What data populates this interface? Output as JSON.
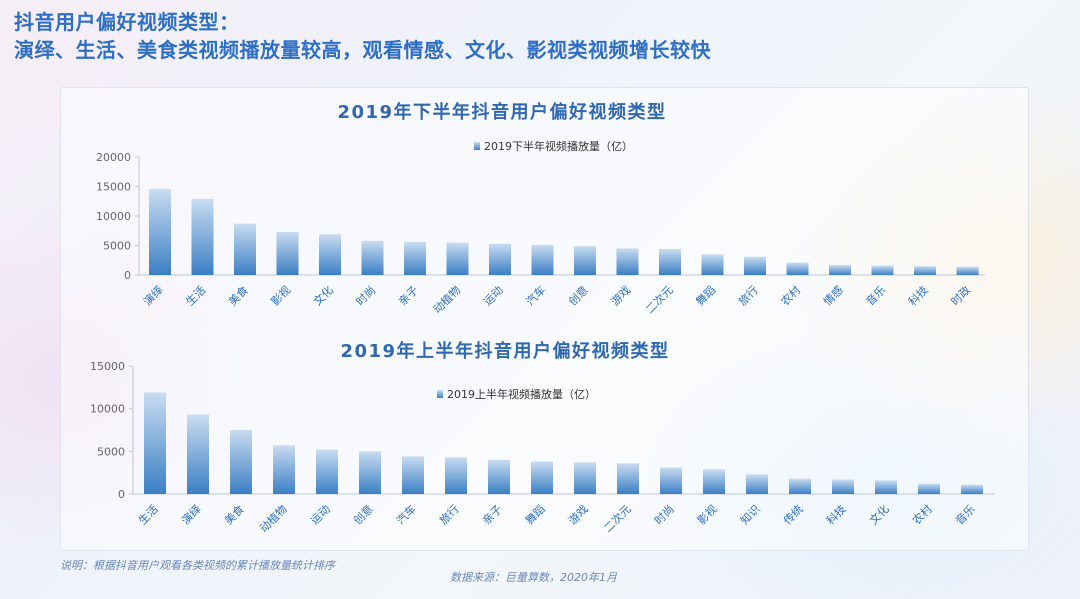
{
  "header": {
    "title_line1": "抖音用户偏好视频类型：",
    "title_line2": "演绎、生活、美食类视频播放量较高，观看情感、文化、影视类视频增长较快"
  },
  "footer": {
    "note": "说明：根据抖音用户观看各类视频的累计播放量统计排序",
    "source": "数据来源：巨量算数，2020年1月"
  },
  "colors": {
    "bar_top": "#c9dcf1",
    "bar_bottom": "#3b7fc4",
    "title": "#2f68b0",
    "category_label": "#2f6fbf"
  },
  "chart_data": [
    {
      "type": "bar",
      "title": "2019年下半年抖音用户偏好视频类型",
      "legend": "top",
      "grid": false,
      "ylim": [
        0,
        20000
      ],
      "yticks": [
        "0",
        "5000",
        "10000",
        "15000",
        "20000"
      ],
      "categories": [
        "演绎",
        "生活",
        "美食",
        "影视",
        "文化",
        "时尚",
        "亲子",
        "动植物",
        "运动",
        "汽车",
        "创意",
        "游戏",
        "二次元",
        "舞蹈",
        "旅行",
        "农村",
        "情感",
        "音乐",
        "科技",
        "时政"
      ],
      "series": [
        {
          "name": "2019下半年视频播放量（亿）",
          "values": [
            14600,
            12900,
            8700,
            7300,
            6900,
            5800,
            5600,
            5500,
            5300,
            5100,
            4900,
            4500,
            4400,
            3500,
            3100,
            2100,
            1700,
            1600,
            1500,
            1400
          ]
        }
      ]
    },
    {
      "type": "bar",
      "title": "2019年上半年抖音用户偏好视频类型",
      "legend": "top",
      "grid": false,
      "ylim": [
        0,
        15000
      ],
      "yticks": [
        "0",
        "5000",
        "10000",
        "15000"
      ],
      "categories": [
        "生活",
        "演绎",
        "美食",
        "动植物",
        "运动",
        "创意",
        "汽车",
        "旅行",
        "亲子",
        "舞蹈",
        "游戏",
        "二次元",
        "时尚",
        "影视",
        "知识",
        "传统",
        "科技",
        "文化",
        "农村",
        "音乐"
      ],
      "series": [
        {
          "name": "2019上半年视频播放量（亿）",
          "values": [
            11900,
            9300,
            7500,
            5700,
            5200,
            5000,
            4400,
            4300,
            4000,
            3800,
            3700,
            3600,
            3100,
            2900,
            2300,
            1800,
            1700,
            1600,
            1200,
            1100
          ]
        }
      ]
    }
  ]
}
